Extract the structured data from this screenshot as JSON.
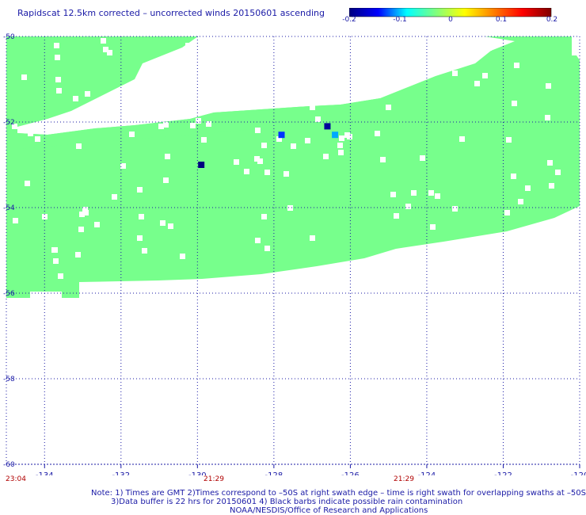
{
  "title": "Rapidscat 12.5km corrected – uncorrected winds 20150601 ascending",
  "colorbar": {
    "ticks": [
      "-0.2",
      "-0.1",
      "0",
      "0.1",
      "0.2"
    ],
    "gradient": [
      "#00007f",
      "#0000ff",
      "#00ffff",
      "#7fff7f",
      "#ffff00",
      "#ff7f00",
      "#ff0000",
      "#7f0000"
    ]
  },
  "map": {
    "lon_ticks": [
      "-134",
      "-132",
      "-130",
      "-128",
      "-126",
      "-124",
      "-122",
      "-120"
    ],
    "lat_ticks": [
      "-50",
      "-52",
      "-54",
      "-56",
      "-58",
      "-60"
    ],
    "grid_color": "#1a1aa6",
    "swath_color": "#77ff8c",
    "anomalies": [
      {
        "lon": -129.9,
        "lat": -53.0,
        "value": -0.2,
        "color": "#00007f"
      },
      {
        "lon": -127.8,
        "lat": -52.3,
        "value": -0.15,
        "color": "#0033ff"
      },
      {
        "lon": -126.6,
        "lat": -52.1,
        "value": -0.2,
        "color": "#00009a"
      },
      {
        "lon": -126.4,
        "lat": -52.3,
        "value": -0.1,
        "color": "#00a8ff"
      }
    ]
  },
  "times": [
    "23:04",
    "21:29",
    "21:29"
  ],
  "notes": [
    "Note: 1) Times are GMT 2)Times correspond to –50S at right swath edge – time is right swath for overlapping swaths at –50S",
    "3)Data buffer is 22 hrs for 20150601 4) Black barbs indicate possible rain contamination",
    "NOAA/NESDIS/Office of Research and Applications"
  ]
}
